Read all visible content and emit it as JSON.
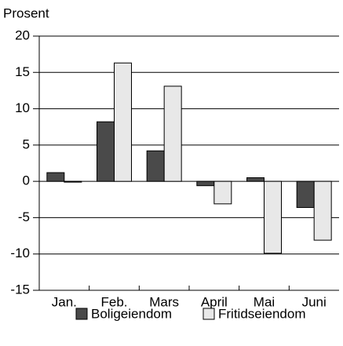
{
  "chart_data": {
    "type": "bar",
    "y_label": "Prosent",
    "categories": [
      "Jan.",
      "Feb.",
      "Mars",
      "April",
      "Mai",
      "Juni"
    ],
    "series": [
      {
        "name": "Boligeiendom",
        "color": "#4a4a4a",
        "values": [
          1.2,
          8.2,
          4.2,
          -0.6,
          0.5,
          -3.6
        ]
      },
      {
        "name": "Fritidseiendom",
        "color": "#e8e8e8",
        "values": [
          -0.1,
          16.3,
          13.1,
          -3.1,
          -9.9,
          -8.1
        ]
      }
    ],
    "ylim": [
      -15,
      20
    ],
    "yticks": [
      -15,
      -10,
      -5,
      0,
      5,
      10,
      15,
      20
    ],
    "grid": true,
    "legend": "bottom"
  }
}
